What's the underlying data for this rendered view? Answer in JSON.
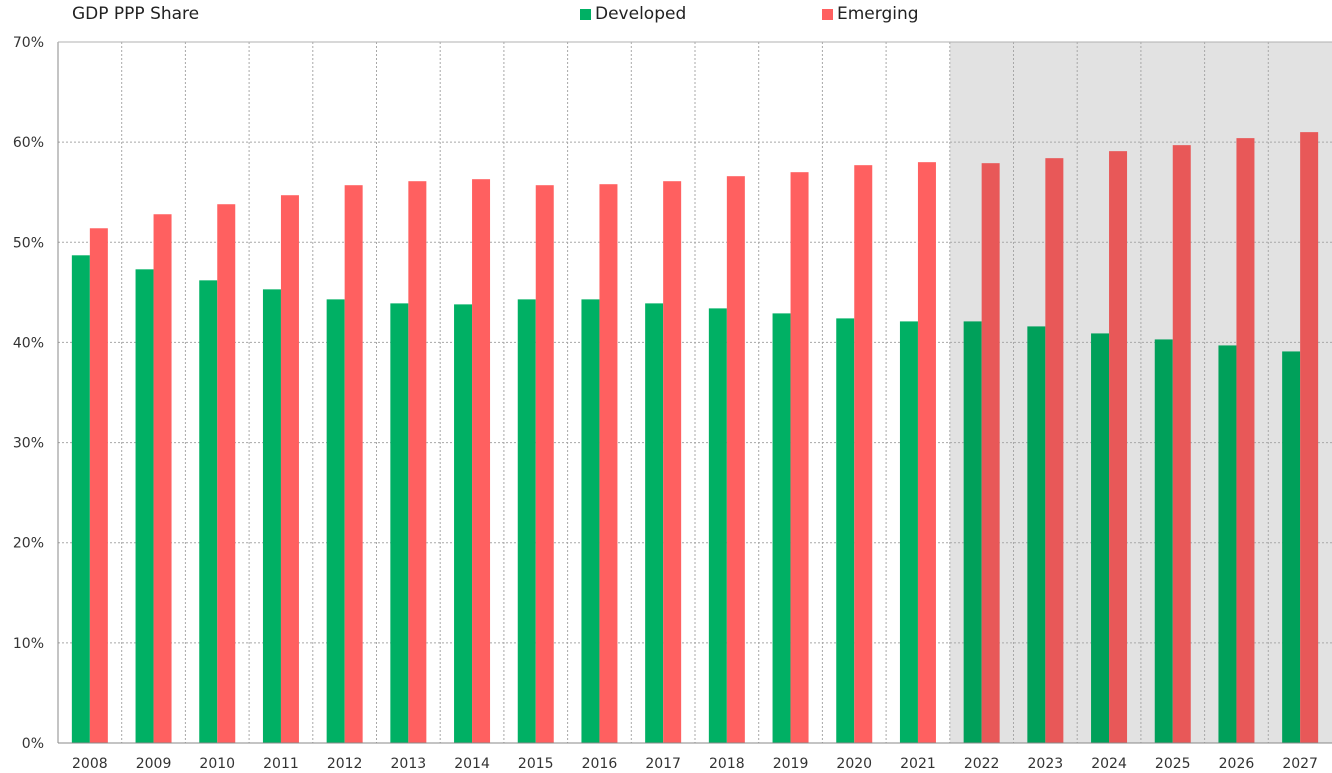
{
  "chart_data": {
    "type": "bar",
    "title": "GDP PPP Share",
    "categories": [
      "2008",
      "2009",
      "2010",
      "2011",
      "2012",
      "2013",
      "2014",
      "2015",
      "2016",
      "2017",
      "2018",
      "2019",
      "2020",
      "2021",
      "2022",
      "2023",
      "2024",
      "2025",
      "2026",
      "2027"
    ],
    "series": [
      {
        "name": "Developed",
        "color": "#00b064",
        "projected_color": "#00a05a",
        "values": [
          48.7,
          47.3,
          46.2,
          45.3,
          44.3,
          43.9,
          43.8,
          44.3,
          44.3,
          43.9,
          43.4,
          42.9,
          42.4,
          42.1,
          42.1,
          41.6,
          40.9,
          40.3,
          39.7,
          39.1
        ]
      },
      {
        "name": "Emerging",
        "color": "#ff6060",
        "projected_color": "#e85858",
        "values": [
          51.4,
          52.8,
          53.8,
          54.7,
          55.7,
          56.1,
          56.3,
          55.7,
          55.8,
          56.1,
          56.6,
          57.0,
          57.7,
          58.0,
          57.9,
          58.4,
          59.1,
          59.7,
          60.4,
          61.0
        ]
      }
    ],
    "yticks": [
      "0%",
      "10%",
      "20%",
      "30%",
      "40%",
      "50%",
      "60%",
      "70%"
    ],
    "ylim": [
      0,
      70
    ],
    "grid": true,
    "projection_start": "2022",
    "projection_shade_color": "#e2e2e2",
    "legend_position": "top-center"
  }
}
